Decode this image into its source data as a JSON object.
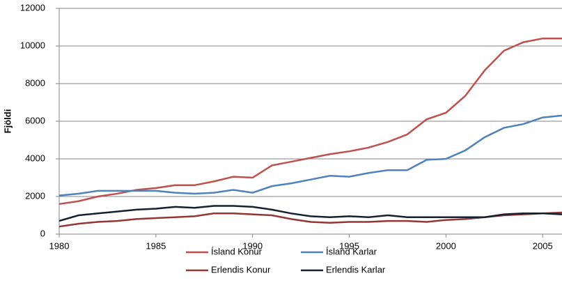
{
  "chart_data": {
    "type": "line",
    "y_label": "Fjöldi",
    "x": [
      1980,
      1981,
      1982,
      1983,
      1984,
      1985,
      1986,
      1987,
      1988,
      1989,
      1990,
      1991,
      1992,
      1993,
      1994,
      1995,
      1996,
      1997,
      1998,
      1999,
      2000,
      2001,
      2002,
      2003,
      2004,
      2005,
      2006
    ],
    "xlim": [
      1980,
      2006
    ],
    "xticks": [
      1980,
      1985,
      1990,
      1995,
      2000,
      2005
    ],
    "ylim": [
      0,
      12000
    ],
    "yticks": [
      0,
      2000,
      4000,
      6000,
      8000,
      10000,
      12000
    ],
    "grid": true,
    "legend": "bottom",
    "series": [
      {
        "name": "Ísland Konur",
        "color": "#c0504d",
        "values": [
          1600,
          1750,
          2000,
          2150,
          2350,
          2450,
          2600,
          2600,
          2800,
          3050,
          3000,
          3650,
          3850,
          4050,
          4250,
          4400,
          4600,
          4900,
          5300,
          6100,
          6450,
          7350,
          8700,
          9750,
          10200,
          10400,
          10400
        ]
      },
      {
        "name": "Ísland Karlar",
        "color": "#4f81bd",
        "values": [
          2050,
          2150,
          2300,
          2300,
          2300,
          2300,
          2200,
          2150,
          2200,
          2350,
          2200,
          2550,
          2700,
          2900,
          3100,
          3050,
          3250,
          3400,
          3400,
          3950,
          4000,
          4450,
          5150,
          5650,
          5850,
          6200,
          6300
        ]
      },
      {
        "name": "Erlendis Konur",
        "color": "#943634",
        "values": [
          400,
          550,
          650,
          700,
          800,
          850,
          900,
          950,
          1100,
          1100,
          1050,
          1000,
          800,
          650,
          600,
          650,
          650,
          700,
          700,
          650,
          750,
          800,
          900,
          1000,
          1050,
          1100,
          1150
        ]
      },
      {
        "name": "Erlendis Karlar",
        "color": "#17202f",
        "values": [
          700,
          1000,
          1100,
          1200,
          1300,
          1350,
          1450,
          1400,
          1500,
          1500,
          1450,
          1300,
          1100,
          950,
          900,
          950,
          900,
          1000,
          900,
          900,
          900,
          900,
          900,
          1050,
          1100,
          1100,
          1050
        ]
      }
    ]
  }
}
